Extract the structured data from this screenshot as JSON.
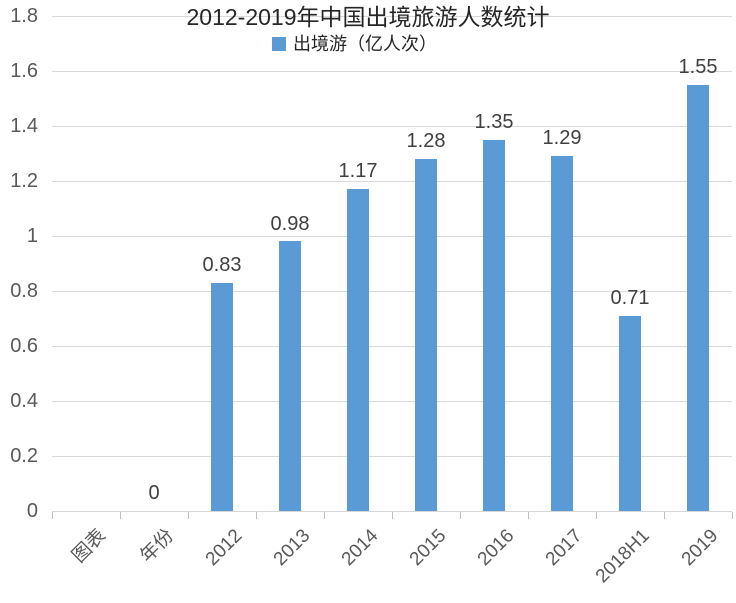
{
  "chart_data": {
    "type": "bar",
    "title": "2012-2019年中国出境旅游人数统计",
    "legend": [
      {
        "label": "出境游（亿人次）",
        "color": "#5B9BD5"
      }
    ],
    "legend_position": "top-center",
    "categories": [
      "图表",
      "年份",
      "2012",
      "2013",
      "2014",
      "2015",
      "2016",
      "2017",
      "2018H1",
      "2019"
    ],
    "series": [
      {
        "name": "出境游（亿人次）",
        "values": [
          null,
          0,
          0.83,
          0.98,
          1.17,
          1.28,
          1.35,
          1.29,
          0.71,
          1.55
        ]
      }
    ],
    "data_labels": [
      "",
      "0",
      "0.83",
      "0.98",
      "1.17",
      "1.28",
      "1.35",
      "1.29",
      "0.71",
      "1.55"
    ],
    "xlabel": "",
    "ylabel": "",
    "ylim": [
      0,
      1.8
    ],
    "ytick_interval": 0.2,
    "yticks": [
      1.8,
      1.6,
      1.4,
      1.2,
      1,
      0.8,
      0.6,
      0.4,
      0.2,
      0
    ],
    "ytick_labels": [
      "1.8",
      "1.6",
      "1.4",
      "1.2",
      "1",
      "0.8",
      "0.6",
      "0.4",
      "0.2",
      "0"
    ],
    "grid": true,
    "x_labels_rotated_degrees": 45,
    "colors": {
      "bar": "#5B9BD5",
      "gridline": "#D9D9D9",
      "axis_line": "#D6D6D6",
      "tick": "#BFBFBF",
      "axis_text": "#595959",
      "data_label_text": "#404040",
      "title_text": "#262626",
      "legend_text": "#262626",
      "background": "#FFFFFF"
    }
  }
}
